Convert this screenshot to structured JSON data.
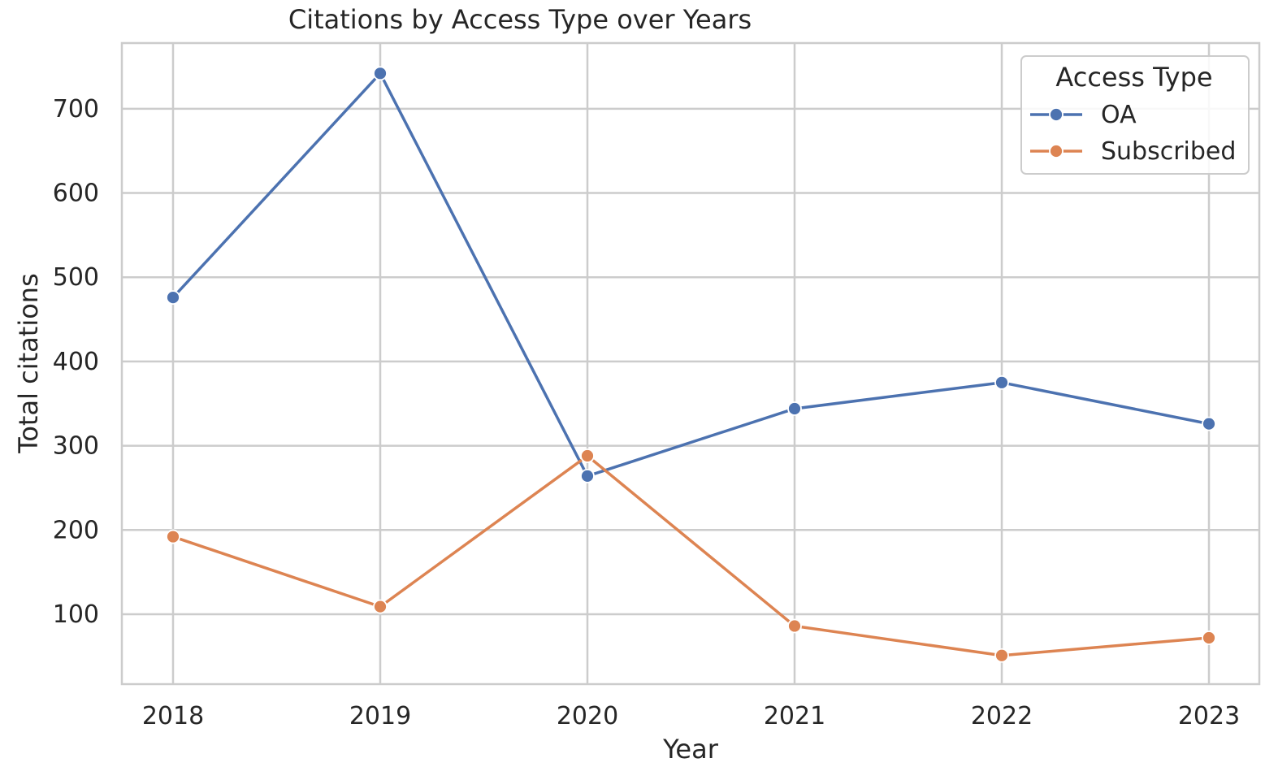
{
  "chart_data": {
    "type": "line",
    "title": "Citations by Access Type over Years",
    "xlabel": "Year",
    "ylabel": "Total citations",
    "x": [
      "2018",
      "2019",
      "2020",
      "2021",
      "2022",
      "2023"
    ],
    "yticks": [
      100,
      200,
      300,
      400,
      500,
      600,
      700
    ],
    "ylim": [
      17,
      778
    ],
    "grid": true,
    "legend": {
      "title": "Access Type",
      "placement": "top-right"
    },
    "series": [
      {
        "name": "OA",
        "color": "#4c72b0",
        "values": [
          476,
          742,
          264,
          344,
          375,
          326
        ]
      },
      {
        "name": "Subscribed",
        "color": "#dd8452",
        "values": [
          192,
          109,
          288,
          86,
          51,
          72
        ]
      }
    ]
  }
}
